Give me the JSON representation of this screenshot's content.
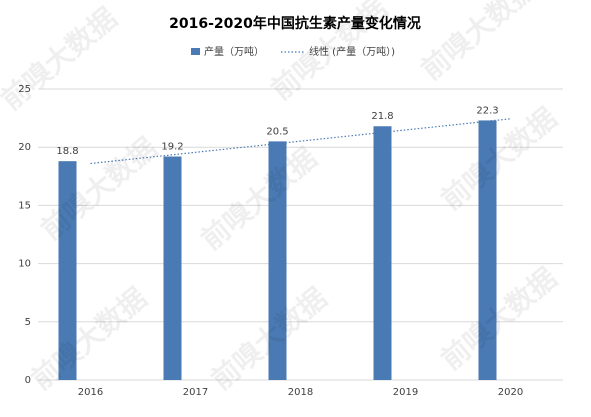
{
  "chart_data": {
    "type": "bar",
    "title": "2016-2020年中国抗生素产量变化情况",
    "watermark": "前嗅大数据",
    "categories": [
      "2016",
      "2017",
      "2018",
      "2019",
      "2020"
    ],
    "series": [
      {
        "name": "产量（万吨）",
        "type": "bar",
        "color": "#4a7ab4",
        "values": [
          18.8,
          19.2,
          20.5,
          21.8,
          22.3
        ]
      },
      {
        "name": "线性 (产量（万吨）)",
        "type": "line",
        "color": "#4a7ab4",
        "values": [
          18.6,
          19.56,
          20.52,
          21.48,
          22.44
        ]
      }
    ],
    "ylim": [
      0,
      25
    ],
    "yticks": [
      0,
      5,
      10,
      15,
      20,
      25
    ],
    "grid": true,
    "legend": "top"
  }
}
